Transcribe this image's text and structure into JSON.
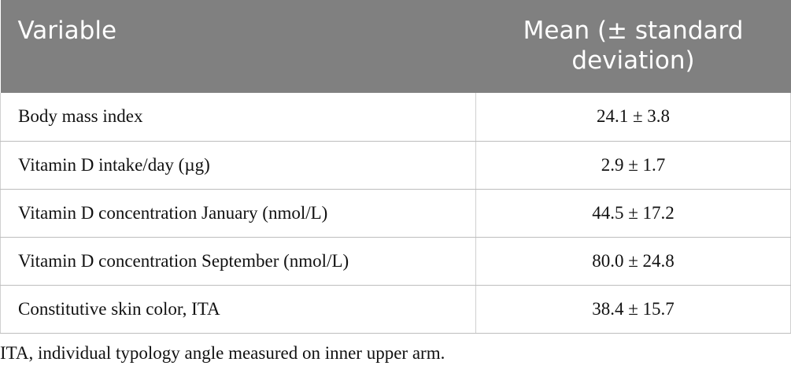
{
  "table": {
    "header": [
      "Variable",
      "Mean (± standard deviation)"
    ],
    "rows": [
      [
        "Body mass index",
        "24.1 ± 3.8"
      ],
      [
        "Vitamin D intake/day (µg)",
        "2.9 ± 1.7"
      ],
      [
        "Vitamin D concentration January (nmol/L)",
        "44.5 ± 17.2"
      ],
      [
        "Vitamin D concentration September (nmol/L)",
        "80.0 ± 24.8"
      ],
      [
        "Constitutive skin color, ITA",
        "38.4 ± 15.7"
      ]
    ]
  },
  "footnote": "ITA, individual typology angle measured on inner upper arm."
}
